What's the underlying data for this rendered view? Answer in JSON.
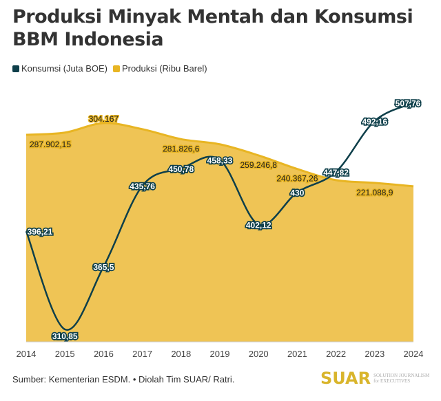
{
  "chart_data": {
    "type": "line",
    "title": "Produksi Minyak Mentah dan Konsumsi BBM Indonesia",
    "x": [
      2014,
      2015,
      2016,
      2017,
      2018,
      2019,
      2020,
      2021,
      2022,
      2023,
      2024
    ],
    "xticks": [
      "2014",
      "2015",
      "2016",
      "2017",
      "2018",
      "2019",
      "2020",
      "2021",
      "2022",
      "2023",
      "2024"
    ],
    "series": [
      {
        "name": "Konsumsi (Juta BOE)",
        "type": "line",
        "color": "#0e3f4a",
        "values": [
          396.21,
          310.85,
          365.5,
          435.76,
          450.78,
          458.33,
          402.12,
          430,
          447.82,
          492.16,
          507.76
        ],
        "labels": [
          "396,21",
          "310,85",
          "365,5",
          "435,76",
          "450,78",
          "458,33",
          "402,12",
          "430",
          "447,82",
          "492,16",
          "507,76"
        ],
        "ylim": [
          300,
          510
        ]
      },
      {
        "name": "Produksi (Ribu Barel)",
        "type": "area",
        "color": "#e8b523",
        "fill": "#efc455",
        "values": [
          287902.15,
          291000,
          304167,
          295700,
          281826.6,
          274700,
          259246.8,
          240367.26,
          224900,
          221088.9,
          216300
        ],
        "labels": [
          "287.902,15",
          null,
          "304.167",
          null,
          "281.826,6",
          null,
          "259.246,8",
          "240.367,26",
          null,
          "221.088,9",
          null
        ],
        "ylim": [
          0,
          335700
        ]
      }
    ],
    "legend": "top-left",
    "grid": false
  },
  "legend": {
    "konsumsi": "Konsumsi (Juta BOE)",
    "produksi": "Produksi (Ribu Barel)"
  },
  "source": "Sumber: Kementerian ESDM. • Diolah Tim SUAR/ Ratri.",
  "logo": {
    "main": "SUAR",
    "sub1": "SOLUTION JOURNALISM",
    "sub2": "for EXECUTIVES"
  }
}
